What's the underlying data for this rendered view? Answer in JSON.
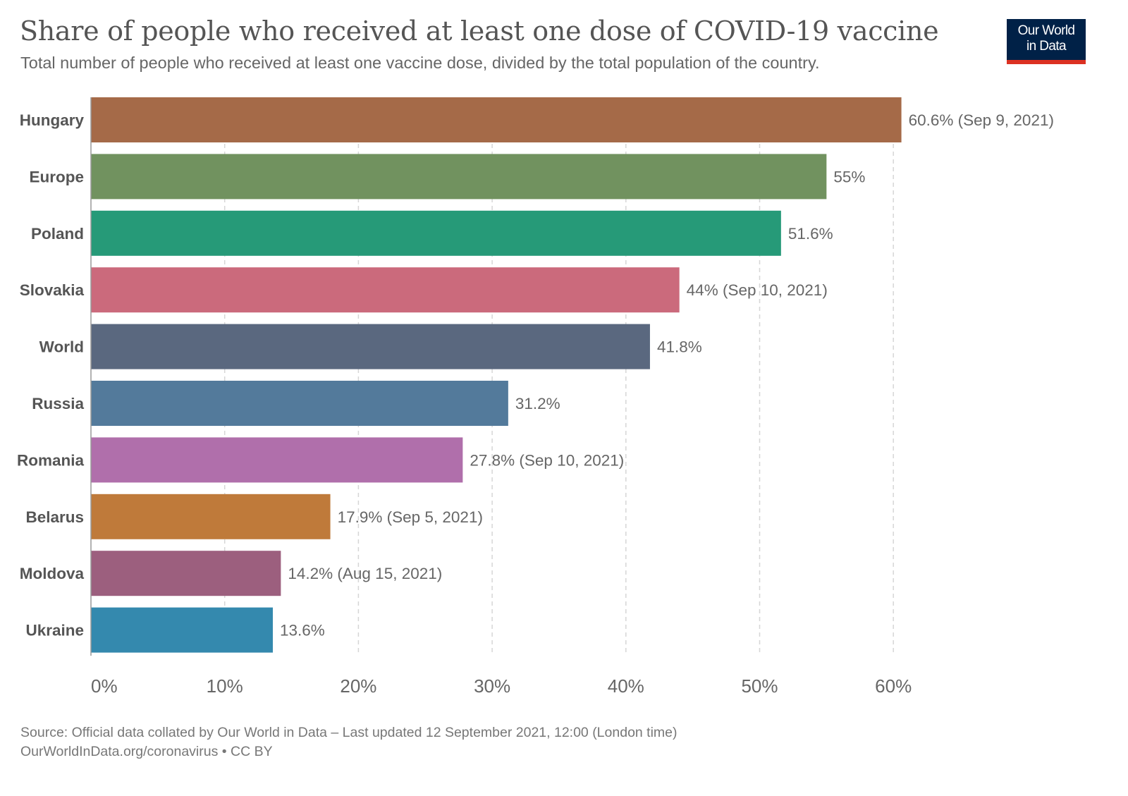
{
  "title": "Share of people who received at least one dose of COVID-19 vaccine",
  "subtitle": "Total number of people who received at least one vaccine dose, divided by the total population of the country.",
  "logo": {
    "line1": "Our World",
    "line2": "in Data",
    "bg_color": "#002147",
    "accent_color": "#dc3122"
  },
  "footer": {
    "source": "Source: Official data collated by Our World in Data – Last updated 12 September 2021, 12:00 (London time)",
    "link": "OurWorldInData.org/coronavirus • CC BY"
  },
  "chart_data": {
    "type": "bar",
    "orientation": "horizontal",
    "title": "Share of people who received at least one dose of COVID-19 vaccine",
    "xlabel": "",
    "ylabel": "",
    "xlim": [
      0,
      60
    ],
    "grid": true,
    "ticks": [
      "0%",
      "10%",
      "20%",
      "30%",
      "40%",
      "50%",
      "60%"
    ],
    "tick_values": [
      0,
      10,
      20,
      30,
      40,
      50,
      60
    ],
    "categories": [
      "Hungary",
      "Europe",
      "Poland",
      "Slovakia",
      "World",
      "Russia",
      "Romania",
      "Belarus",
      "Moldova",
      "Ukraine"
    ],
    "values": [
      60.6,
      55,
      51.6,
      44,
      41.8,
      31.2,
      27.8,
      17.9,
      14.2,
      13.6
    ],
    "labels": [
      "60.6% (Sep 9, 2021)",
      "55%",
      "51.6%",
      "44% (Sep 10, 2021)",
      "41.8%",
      "31.2%",
      "27.8% (Sep 10, 2021)",
      "17.9% (Sep 5, 2021)",
      "14.2% (Aug 15, 2021)",
      "13.6%"
    ],
    "colors": [
      "#a56a48",
      "#71925f",
      "#269a78",
      "#cb6a7c",
      "#5a687f",
      "#537a9b",
      "#b06fab",
      "#bf7a3a",
      "#9c5f7e",
      "#3489ae"
    ]
  }
}
